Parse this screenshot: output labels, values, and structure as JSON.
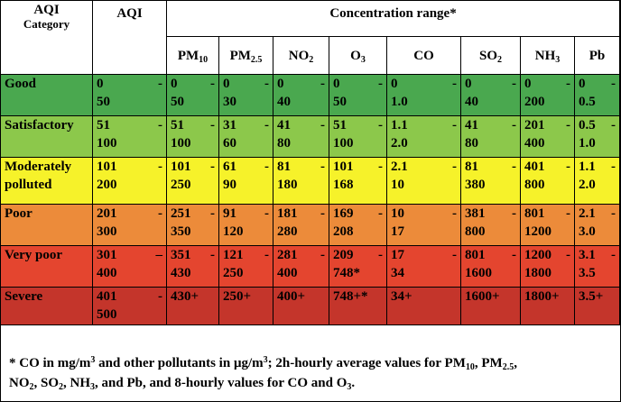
{
  "header": {
    "category_line1": "AQI",
    "category_line2": "Category",
    "aqi": "AQI",
    "concentration": "Concentration range*",
    "pollutants": [
      {
        "main": "PM",
        "sub": "10"
      },
      {
        "main": "PM",
        "sub": "2.5"
      },
      {
        "main": "NO",
        "sub": "2"
      },
      {
        "main": "O",
        "sub": "3"
      },
      {
        "main": "CO",
        "sub": ""
      },
      {
        "main": "SO",
        "sub": "2"
      },
      {
        "main": "NH",
        "sub": "3"
      },
      {
        "main": "Pb",
        "sub": ""
      }
    ]
  },
  "colors": {
    "good": "#4aa84f",
    "satisfactory": "#8cc84b",
    "moderate": "#f6f22a",
    "poor": "#ec8b3a",
    "very_poor": "#e4452f",
    "severe": "#c4352b"
  },
  "rows": [
    {
      "category": "Good",
      "aqi": "0 - 50",
      "pm10": "0 - 50",
      "pm25": "0 - 30",
      "no2": "0 - 40",
      "o3": "0 - 50",
      "co": "0 - 1.0",
      "so2": "0 - 40",
      "nh3": "0 - 200",
      "pb": "0 - 0.5"
    },
    {
      "category": "Satisfactory",
      "aqi": "51 - 100",
      "pm10": "51 - 100",
      "pm25": "31 - 60",
      "no2": "41 - 80",
      "o3": "51 - 100",
      "co": "1.1 - 2.0",
      "so2": "41 - 80",
      "nh3": "201 - 400",
      "pb": "0.5 - 1.0"
    },
    {
      "category": "Moderately polluted",
      "aqi": "101 - 200",
      "pm10": "101 - 250",
      "pm25": "61 - 90",
      "no2": "81 - 180",
      "o3": "101 - 168",
      "co": "2.1 - 10",
      "so2": "81 - 380",
      "nh3": "401 - 800",
      "pb": "1.1 - 2.0"
    },
    {
      "category": "Poor",
      "aqi": "201 - 300",
      "pm10": "251 - 350",
      "pm25": "91 - 120",
      "no2": "181 - 280",
      "o3": "169 - 208",
      "co": "10 - 17",
      "so2": "381 - 800",
      "nh3": "801 - 1200",
      "pb": "2.1 - 3.0"
    },
    {
      "category": "Very poor",
      "aqi": "301 – 400",
      "pm10": "351 - 430",
      "pm25": "121 - 250",
      "no2": "281 - 400",
      "o3": "209 - 748*",
      "co": "17 - 34",
      "so2": "801 - 1600",
      "nh3": "1200 -1800",
      "pb": "3.1 - 3.5"
    },
    {
      "category": "Severe",
      "aqi": "401 - 500",
      "pm10": "430+",
      "pm25": "250+",
      "no2": "400+",
      "o3": "748+*",
      "co": "34+",
      "so2": "1600+",
      "nh3": "1800+",
      "pb": "3.5+"
    }
  ],
  "footnote": {
    "t1": "* CO in mg/m",
    "t1_sup": "3",
    "t2": " and other pollutants in μg/m",
    "t2_sup": "3",
    "t3": "; 2h-hourly average values for PM",
    "t3_sub": "10",
    "t4": ", PM",
    "t4_sub": "2.5",
    "t5": ",",
    "t6": "NO",
    "t6_sub": "2",
    "t7": ", SO",
    "t7_sub": "2",
    "t8": ", NH",
    "t8_sub": "3",
    "t9": ", and Pb, and 8-hourly values for CO and O",
    "t9_sub": "3",
    "t10": "."
  }
}
